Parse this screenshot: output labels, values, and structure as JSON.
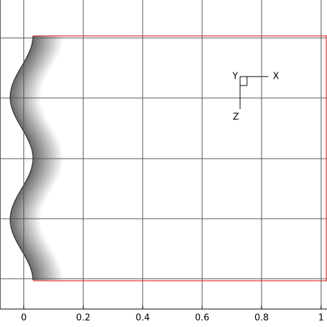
{
  "chart_data": {
    "type": "plot",
    "xlim": [
      -0.08,
      1.02
    ],
    "xticks": [
      0,
      0.2,
      0.4,
      0.6,
      0.8,
      1
    ],
    "grid": true,
    "axes_triad": {
      "x": "X",
      "y": "Y",
      "z": "Z"
    }
  }
}
